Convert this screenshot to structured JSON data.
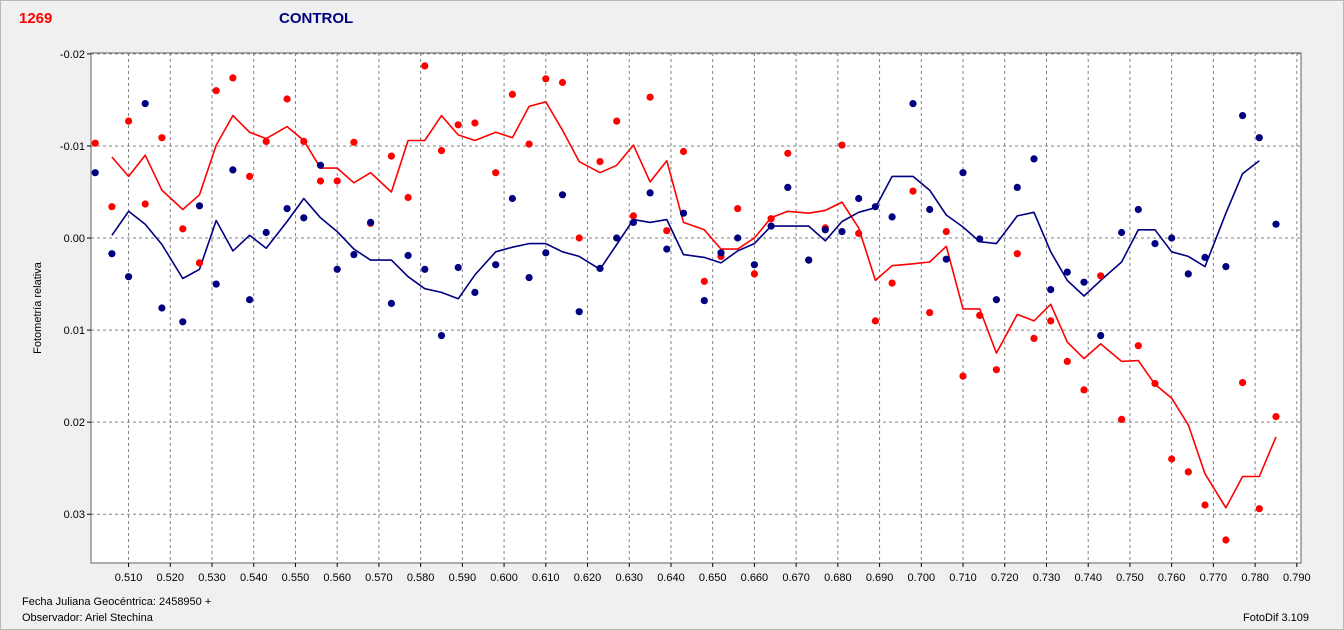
{
  "header": {
    "star_id": "1269",
    "panel_title": "CONTROL"
  },
  "footer": {
    "jd_label": "Fecha Juliana Geocéntrica: 2458950 +",
    "observer_label": "Observador: Ariel Stechina",
    "software_label": "FotoDif 3.109"
  },
  "colors": {
    "red_series": "#ff0000",
    "blue_series": "#000080",
    "star_id": "#ff0000",
    "title": "#000080",
    "grid": "#808080",
    "plot_background": "#ffffff"
  },
  "chart_data": {
    "type": "scatter",
    "ylabel": "Fotometría relativa",
    "xlim": [
      0.501,
      0.791
    ],
    "ylim": [
      -0.0201,
      0.0353
    ],
    "y_inverted": true,
    "grid": true,
    "x_ticks": [
      "0.510",
      "0.520",
      "0.530",
      "0.540",
      "0.550",
      "0.560",
      "0.570",
      "0.580",
      "0.590",
      "0.600",
      "0.610",
      "0.620",
      "0.630",
      "0.640",
      "0.650",
      "0.660",
      "0.670",
      "0.680",
      "0.690",
      "0.700",
      "0.710",
      "0.720",
      "0.730",
      "0.740",
      "0.750",
      "0.760",
      "0.770",
      "0.780",
      "0.790"
    ],
    "y_ticks": [
      "-0.02",
      "-0.01",
      "0.00",
      "0.01",
      "0.02",
      "0.03"
    ],
    "y_tick_values": [
      -0.02,
      -0.01,
      0.0,
      0.01,
      0.02,
      0.03
    ],
    "series": [
      {
        "color": "#ff0000",
        "points": [
          [
            0.502,
            -0.0103
          ],
          [
            0.506,
            -0.0034
          ],
          [
            0.51,
            -0.0127
          ],
          [
            0.514,
            -0.0037
          ],
          [
            0.518,
            -0.0109
          ],
          [
            0.523,
            -0.001
          ],
          [
            0.527,
            0.0027
          ],
          [
            0.531,
            -0.016
          ],
          [
            0.535,
            -0.0174
          ],
          [
            0.539,
            -0.0067
          ],
          [
            0.543,
            -0.0105
          ],
          [
            0.548,
            -0.0151
          ],
          [
            0.552,
            -0.0105
          ],
          [
            0.556,
            -0.0062
          ],
          [
            0.56,
            -0.0062
          ],
          [
            0.564,
            -0.0104
          ],
          [
            0.568,
            -0.0016
          ],
          [
            0.573,
            -0.0089
          ],
          [
            0.577,
            -0.0044
          ],
          [
            0.581,
            -0.0187
          ],
          [
            0.585,
            -0.0095
          ],
          [
            0.589,
            -0.0123
          ],
          [
            0.593,
            -0.0125
          ],
          [
            0.598,
            -0.0071
          ],
          [
            0.602,
            -0.0156
          ],
          [
            0.606,
            -0.0102
          ],
          [
            0.61,
            -0.0173
          ],
          [
            0.614,
            -0.0169
          ],
          [
            0.618,
            0.0
          ],
          [
            0.623,
            -0.0083
          ],
          [
            0.627,
            -0.0127
          ],
          [
            0.631,
            -0.0024
          ],
          [
            0.635,
            -0.0153
          ],
          [
            0.639,
            -0.0008
          ],
          [
            0.643,
            -0.0094
          ],
          [
            0.648,
            0.0047
          ],
          [
            0.652,
            0.002
          ],
          [
            0.656,
            -0.0032
          ],
          [
            0.66,
            0.0039
          ],
          [
            0.664,
            -0.0021
          ],
          [
            0.668,
            -0.0092
          ],
          [
            0.673,
            0.0024
          ],
          [
            0.677,
            -0.0011
          ],
          [
            0.681,
            -0.0101
          ],
          [
            0.685,
            -0.0005
          ],
          [
            0.689,
            0.009
          ],
          [
            0.693,
            0.0049
          ],
          [
            0.698,
            -0.0051
          ],
          [
            0.702,
            0.0081
          ],
          [
            0.706,
            -0.0007
          ],
          [
            0.71,
            0.015
          ],
          [
            0.714,
            0.0084
          ],
          [
            0.718,
            0.0143
          ],
          [
            0.723,
            0.0017
          ],
          [
            0.727,
            0.0109
          ],
          [
            0.731,
            0.009
          ],
          [
            0.735,
            0.0134
          ],
          [
            0.739,
            0.0165
          ],
          [
            0.743,
            0.0041
          ],
          [
            0.748,
            0.0197
          ],
          [
            0.752,
            0.0117
          ],
          [
            0.756,
            0.0158
          ],
          [
            0.76,
            0.024
          ],
          [
            0.764,
            0.0254
          ],
          [
            0.768,
            0.029
          ],
          [
            0.773,
            0.0328
          ],
          [
            0.777,
            0.0157
          ],
          [
            0.781,
            0.0294
          ],
          [
            0.785,
            0.0194
          ]
        ],
        "mean_line": [
          [
            0.506,
            -0.0088
          ],
          [
            0.51,
            -0.0067
          ],
          [
            0.514,
            -0.009
          ],
          [
            0.518,
            -0.0052
          ],
          [
            0.523,
            -0.0031
          ],
          [
            0.527,
            -0.0047
          ],
          [
            0.531,
            -0.0101
          ],
          [
            0.535,
            -0.0133
          ],
          [
            0.539,
            -0.0115
          ],
          [
            0.543,
            -0.0108
          ],
          [
            0.548,
            -0.0121
          ],
          [
            0.552,
            -0.0106
          ],
          [
            0.556,
            -0.0076
          ],
          [
            0.56,
            -0.0076
          ],
          [
            0.564,
            -0.006
          ],
          [
            0.568,
            -0.0071
          ],
          [
            0.573,
            -0.005
          ],
          [
            0.577,
            -0.0106
          ],
          [
            0.581,
            -0.0106
          ],
          [
            0.585,
            -0.0133
          ],
          [
            0.589,
            -0.0112
          ],
          [
            0.593,
            -0.0106
          ],
          [
            0.598,
            -0.0115
          ],
          [
            0.602,
            -0.0109
          ],
          [
            0.606,
            -0.0143
          ],
          [
            0.61,
            -0.0148
          ],
          [
            0.614,
            -0.0117
          ],
          [
            0.618,
            -0.0083
          ],
          [
            0.623,
            -0.0071
          ],
          [
            0.627,
            -0.0079
          ],
          [
            0.631,
            -0.0101
          ],
          [
            0.635,
            -0.0061
          ],
          [
            0.639,
            -0.0084
          ],
          [
            0.643,
            -0.0017
          ],
          [
            0.648,
            -0.0009
          ],
          [
            0.652,
            0.0012
          ],
          [
            0.656,
            0.0012
          ],
          [
            0.66,
            0.0
          ],
          [
            0.664,
            -0.0022
          ],
          [
            0.668,
            -0.0029
          ],
          [
            0.673,
            -0.0027
          ],
          [
            0.677,
            -0.003
          ],
          [
            0.681,
            -0.0039
          ],
          [
            0.685,
            -0.0011
          ],
          [
            0.689,
            0.0046
          ],
          [
            0.693,
            0.003
          ],
          [
            0.698,
            0.0028
          ],
          [
            0.702,
            0.0026
          ],
          [
            0.706,
            0.0009
          ],
          [
            0.71,
            0.0077
          ],
          [
            0.714,
            0.0077
          ],
          [
            0.718,
            0.0125
          ],
          [
            0.723,
            0.0083
          ],
          [
            0.727,
            0.009
          ],
          [
            0.731,
            0.0072
          ],
          [
            0.735,
            0.0113
          ],
          [
            0.739,
            0.0131
          ],
          [
            0.743,
            0.0115
          ],
          [
            0.748,
            0.0134
          ],
          [
            0.752,
            0.0133
          ],
          [
            0.756,
            0.0159
          ],
          [
            0.76,
            0.0174
          ],
          [
            0.764,
            0.0203
          ],
          [
            0.768,
            0.0256
          ],
          [
            0.773,
            0.0293
          ],
          [
            0.777,
            0.0259
          ],
          [
            0.781,
            0.0259
          ],
          [
            0.785,
            0.0216
          ]
        ]
      },
      {
        "color": "#000080",
        "points": [
          [
            0.502,
            -0.0071
          ],
          [
            0.506,
            0.0017
          ],
          [
            0.51,
            0.0042
          ],
          [
            0.514,
            -0.0146
          ],
          [
            0.518,
            0.0076
          ],
          [
            0.523,
            0.0091
          ],
          [
            0.527,
            -0.0035
          ],
          [
            0.531,
            0.005
          ],
          [
            0.535,
            -0.0074
          ],
          [
            0.539,
            0.0067
          ],
          [
            0.543,
            -0.0006
          ],
          [
            0.548,
            -0.0032
          ],
          [
            0.552,
            -0.0022
          ],
          [
            0.556,
            -0.0079
          ],
          [
            0.56,
            0.0034
          ],
          [
            0.564,
            0.0018
          ],
          [
            0.568,
            -0.0017
          ],
          [
            0.573,
            0.0071
          ],
          [
            0.577,
            0.0019
          ],
          [
            0.581,
            0.0034
          ],
          [
            0.585,
            0.0106
          ],
          [
            0.589,
            0.0032
          ],
          [
            0.593,
            0.0059
          ],
          [
            0.598,
            0.0029
          ],
          [
            0.602,
            -0.0043
          ],
          [
            0.606,
            0.0043
          ],
          [
            0.61,
            0.0016
          ],
          [
            0.614,
            -0.0047
          ],
          [
            0.618,
            0.008
          ],
          [
            0.623,
            0.0033
          ],
          [
            0.627,
            0.0
          ],
          [
            0.631,
            -0.0017
          ],
          [
            0.635,
            -0.0049
          ],
          [
            0.639,
            0.0012
          ],
          [
            0.643,
            -0.0027
          ],
          [
            0.648,
            0.0068
          ],
          [
            0.652,
            0.0016
          ],
          [
            0.656,
            0.0
          ],
          [
            0.66,
            0.0029
          ],
          [
            0.664,
            -0.0013
          ],
          [
            0.668,
            -0.0055
          ],
          [
            0.673,
            0.0024
          ],
          [
            0.677,
            -0.0009
          ],
          [
            0.681,
            -0.0007
          ],
          [
            0.685,
            -0.0043
          ],
          [
            0.689,
            -0.0034
          ],
          [
            0.693,
            -0.0023
          ],
          [
            0.698,
            -0.0146
          ],
          [
            0.702,
            -0.0031
          ],
          [
            0.706,
            0.0023
          ],
          [
            0.71,
            -0.0071
          ],
          [
            0.714,
            0.0001
          ],
          [
            0.718,
            0.0067
          ],
          [
            0.723,
            -0.0055
          ],
          [
            0.727,
            -0.0086
          ],
          [
            0.731,
            0.0056
          ],
          [
            0.735,
            0.0037
          ],
          [
            0.739,
            0.0048
          ],
          [
            0.743,
            0.0106
          ],
          [
            0.748,
            -0.0006
          ],
          [
            0.752,
            -0.0031
          ],
          [
            0.756,
            0.0006
          ],
          [
            0.76,
            0.0
          ],
          [
            0.764,
            0.0039
          ],
          [
            0.768,
            0.0021
          ],
          [
            0.773,
            0.0031
          ],
          [
            0.777,
            -0.0133
          ],
          [
            0.781,
            -0.0109
          ],
          [
            0.785,
            -0.0015
          ]
        ],
        "mean_line": [
          [
            0.506,
            -0.0003
          ],
          [
            0.51,
            -0.0029
          ],
          [
            0.514,
            -0.0015
          ],
          [
            0.518,
            0.0007
          ],
          [
            0.523,
            0.0044
          ],
          [
            0.527,
            0.0034
          ],
          [
            0.531,
            -0.0019
          ],
          [
            0.535,
            0.0014
          ],
          [
            0.539,
            -0.0003
          ],
          [
            0.543,
            0.0011
          ],
          [
            0.548,
            -0.0018
          ],
          [
            0.552,
            -0.0043
          ],
          [
            0.556,
            -0.0022
          ],
          [
            0.56,
            -0.0007
          ],
          [
            0.564,
            0.0012
          ],
          [
            0.568,
            0.0024
          ],
          [
            0.573,
            0.0024
          ],
          [
            0.577,
            0.0042
          ],
          [
            0.581,
            0.0055
          ],
          [
            0.585,
            0.0059
          ],
          [
            0.589,
            0.0066
          ],
          [
            0.593,
            0.004
          ],
          [
            0.598,
            0.0015
          ],
          [
            0.602,
            0.001
          ],
          [
            0.606,
            0.0006
          ],
          [
            0.61,
            0.0006
          ],
          [
            0.614,
            0.0015
          ],
          [
            0.618,
            0.002
          ],
          [
            0.623,
            0.0034
          ],
          [
            0.627,
            0.0007
          ],
          [
            0.631,
            -0.002
          ],
          [
            0.635,
            -0.0017
          ],
          [
            0.639,
            -0.002
          ],
          [
            0.643,
            0.0018
          ],
          [
            0.648,
            0.0021
          ],
          [
            0.652,
            0.0027
          ],
          [
            0.656,
            0.0014
          ],
          [
            0.66,
            0.0006
          ],
          [
            0.664,
            -0.0013
          ],
          [
            0.668,
            -0.0013
          ],
          [
            0.673,
            -0.0013
          ],
          [
            0.677,
            0.0003
          ],
          [
            0.681,
            -0.0018
          ],
          [
            0.685,
            -0.0028
          ],
          [
            0.689,
            -0.0033
          ],
          [
            0.693,
            -0.0067
          ],
          [
            0.698,
            -0.0067
          ],
          [
            0.702,
            -0.0052
          ],
          [
            0.706,
            -0.0025
          ],
          [
            0.71,
            -0.0012
          ],
          [
            0.714,
            0.0004
          ],
          [
            0.718,
            0.0006
          ],
          [
            0.723,
            -0.0024
          ],
          [
            0.727,
            -0.0028
          ],
          [
            0.731,
            0.0015
          ],
          [
            0.735,
            0.0046
          ],
          [
            0.739,
            0.0063
          ],
          [
            0.743,
            0.0046
          ],
          [
            0.748,
            0.0026
          ],
          [
            0.752,
            -0.0009
          ],
          [
            0.756,
            -0.0009
          ],
          [
            0.76,
            0.0015
          ],
          [
            0.764,
            0.002
          ],
          [
            0.768,
            0.0031
          ],
          [
            0.773,
            -0.0027
          ],
          [
            0.777,
            -0.007
          ],
          [
            0.781,
            -0.0084
          ]
        ]
      }
    ]
  }
}
